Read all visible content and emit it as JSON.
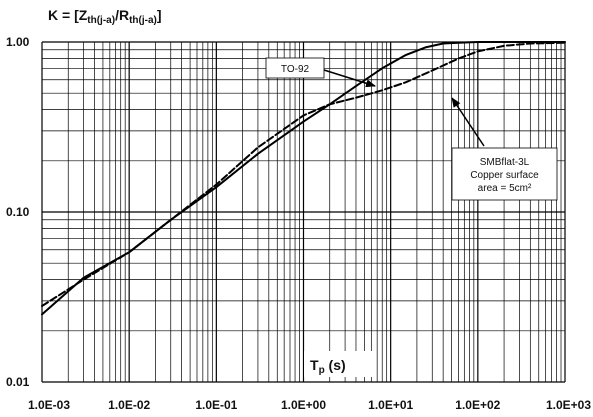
{
  "chart_data": {
    "type": "line",
    "title": {
      "prefix": "K = [Z",
      "sub1": "th(j-a)",
      "middle": "/R",
      "sub2": "th(j-a)",
      "suffix": "]"
    },
    "xlabel": {
      "main": "T",
      "sub": "p",
      "suffix": " (s)"
    },
    "x_scale": "log",
    "y_scale": "log",
    "xlim": [
      0.001,
      1000
    ],
    "ylim": [
      0.01,
      1.0
    ],
    "grid": true,
    "x_tick_labels": [
      "1.0E-03",
      "1.0E-02",
      "1.0E-01",
      "1.0E+00",
      "1.0E+01",
      "1.0E+02",
      "1.0E+03"
    ],
    "y_tick_labels": [
      "0.01",
      "0.10",
      "1.00"
    ],
    "series": [
      {
        "style": "solid",
        "x": [
          0.001,
          0.003,
          0.01,
          0.03,
          0.1,
          0.3,
          1,
          2,
          4,
          8,
          15,
          25,
          40,
          60,
          100,
          200,
          400,
          1000
        ],
        "y": [
          0.025,
          0.041,
          0.058,
          0.09,
          0.14,
          0.22,
          0.34,
          0.43,
          0.55,
          0.7,
          0.84,
          0.93,
          0.98,
          0.99,
          1.0,
          1.0,
          1.0,
          1.0
        ]
      },
      {
        "style": "dashed",
        "x": [
          0.001,
          0.003,
          0.01,
          0.03,
          0.1,
          0.3,
          1,
          2,
          4,
          8,
          15,
          30,
          60,
          100,
          200,
          400,
          1000
        ],
        "y": [
          0.028,
          0.04,
          0.058,
          0.09,
          0.145,
          0.24,
          0.37,
          0.43,
          0.47,
          0.52,
          0.58,
          0.68,
          0.8,
          0.88,
          0.95,
          0.98,
          0.99
        ]
      }
    ],
    "annotations": [
      {
        "lines": [
          "TO-92"
        ]
      },
      {
        "lines": [
          "SMBflat-3L",
          "Copper surface",
          "area = 5cm²"
        ]
      }
    ]
  }
}
